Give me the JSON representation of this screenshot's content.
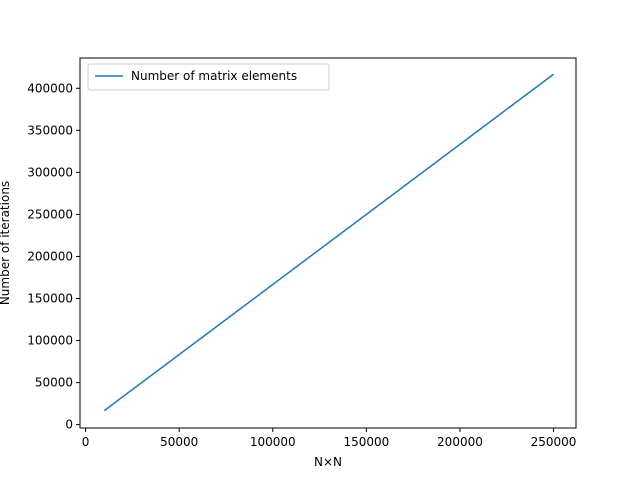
{
  "chart_data": {
    "type": "line",
    "title": "",
    "xlabel": "N×N",
    "ylabel": "Number of iterations",
    "xlim": [
      -3000,
      262000
    ],
    "ylim": [
      -4000,
      436000
    ],
    "x_ticks": [
      0,
      50000,
      100000,
      150000,
      200000,
      250000
    ],
    "x_tick_labels": [
      "0",
      "50000",
      "100000",
      "150000",
      "200000",
      "250000"
    ],
    "y_ticks": [
      0,
      50000,
      100000,
      150000,
      200000,
      250000,
      300000,
      350000,
      400000
    ],
    "y_tick_labels": [
      "0",
      "50000",
      "100000",
      "150000",
      "200000",
      "250000",
      "300000",
      "350000",
      "400000"
    ],
    "grid": false,
    "legend_position": "top-left",
    "series": [
      {
        "name": "Number of matrix elements",
        "color": "#1f77b4",
        "x": [
          10000,
          250000
        ],
        "y": [
          16700,
          416700
        ]
      }
    ]
  }
}
